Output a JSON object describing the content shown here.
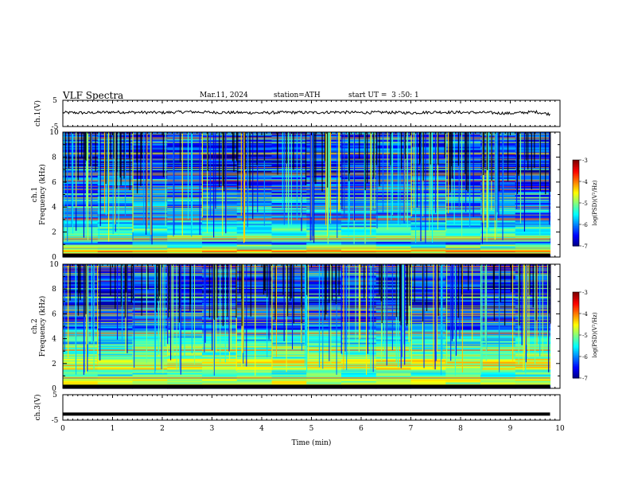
{
  "header": {
    "title": "VLF Spectra",
    "date": "Mar.11, 2024",
    "station": "station=ATH",
    "start_ut": "start UT =  3 :50: 1"
  },
  "chart_data": [
    {
      "type": "line",
      "panel": "ch1-waveform",
      "ylabel": "ch.1(V)",
      "xlim": [
        0,
        10
      ],
      "ylim": [
        -5,
        5
      ],
      "yticks": [
        "5",
        "-5"
      ],
      "x": [
        0,
        0.5,
        1,
        1.5,
        2,
        2.5,
        3,
        3.5,
        4,
        4.5,
        5,
        5.5,
        6,
        6.5,
        7,
        7.5,
        8,
        8.5,
        9,
        9.5,
        9.8
      ],
      "values": [
        0.3,
        0.2,
        0.5,
        0.4,
        0.3,
        0.6,
        0.4,
        0.3,
        0.2,
        0.4,
        0.3,
        0.5,
        0.3,
        0.4,
        0.2,
        0.5,
        0.4,
        0.3,
        0.0,
        0.6,
        -0.3
      ]
    },
    {
      "type": "heatmap",
      "panel": "ch1-spectrogram",
      "ylabel_top": "ch.1",
      "ylabel": "Frequency (kHz)",
      "xlim": [
        0,
        9.8
      ],
      "ylim": [
        0,
        10
      ],
      "yticks": [
        "0",
        "2",
        "4",
        "6",
        "8",
        "10"
      ],
      "colorbar": {
        "label": "log(PSD)(V²/Hz)",
        "range": [
          -7,
          -3
        ],
        "ticks": [
          "-3",
          "-4",
          "-5",
          "-6",
          "-7"
        ]
      },
      "bands_khz": [
        {
          "f": [
            0.3,
            0.6
          ],
          "level": -4.3
        },
        {
          "f": [
            0.6,
            1.0
          ],
          "level": -5.2
        },
        {
          "f": [
            1.0,
            1.6
          ],
          "level": -6.1
        },
        {
          "f": [
            1.6,
            2.4
          ],
          "level": -5.3
        },
        {
          "f": [
            2.4,
            3.0
          ],
          "level": -5.7
        },
        {
          "f": [
            3.0,
            4.8
          ],
          "level": -6.0
        },
        {
          "f": [
            4.8,
            6.5
          ],
          "level": -6.2
        },
        {
          "f": [
            6.5,
            8.5
          ],
          "level": -6.5
        },
        {
          "f": [
            8.5,
            10.0
          ],
          "level": -6.3
        }
      ]
    },
    {
      "type": "heatmap",
      "panel": "ch2-spectrogram",
      "ylabel_top": "ch.2",
      "ylabel": "Frequency (kHz)",
      "xlim": [
        0,
        9.8
      ],
      "ylim": [
        0,
        10
      ],
      "yticks": [
        "0",
        "2",
        "4",
        "6",
        "8",
        "10"
      ],
      "colorbar": {
        "label": "log(PSD)(V²/Hz)",
        "range": [
          -7,
          -3
        ],
        "ticks": [
          "-3",
          "-4",
          "-5",
          "-6",
          "-7"
        ]
      },
      "bands_khz": [
        {
          "f": [
            0.3,
            0.8
          ],
          "level": -4.8
        },
        {
          "f": [
            0.8,
            1.6
          ],
          "level": -5.3
        },
        {
          "f": [
            1.6,
            2.4
          ],
          "level": -4.6
        },
        {
          "f": [
            2.4,
            3.4
          ],
          "level": -5.2
        },
        {
          "f": [
            3.4,
            4.8
          ],
          "level": -5.6
        },
        {
          "f": [
            4.8,
            6.5
          ],
          "level": -6.2
        },
        {
          "f": [
            6.5,
            8.5
          ],
          "level": -6.5
        },
        {
          "f": [
            8.5,
            10.0
          ],
          "level": -6.3
        }
      ]
    },
    {
      "type": "line",
      "panel": "ch3-waveform",
      "ylabel": "ch.3(V)",
      "xlim": [
        0,
        10
      ],
      "ylim": [
        -5,
        5
      ],
      "yticks": [
        "5",
        "-5"
      ],
      "x": [
        0,
        9.8
      ],
      "values": [
        -2.6,
        -2.6
      ]
    }
  ],
  "xaxis": {
    "label": "Time (min)",
    "ticks": [
      "0",
      "1",
      "2",
      "3",
      "4",
      "5",
      "6",
      "7",
      "8",
      "9",
      "10"
    ]
  }
}
